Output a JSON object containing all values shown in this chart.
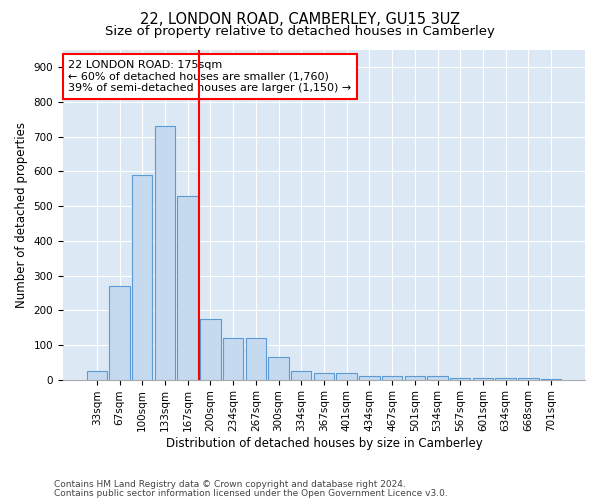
{
  "title": "22, LONDON ROAD, CAMBERLEY, GU15 3UZ",
  "subtitle": "Size of property relative to detached houses in Camberley",
  "xlabel": "Distribution of detached houses by size in Camberley",
  "ylabel": "Number of detached properties",
  "categories": [
    "33sqm",
    "67sqm",
    "100sqm",
    "133sqm",
    "167sqm",
    "200sqm",
    "234sqm",
    "267sqm",
    "300sqm",
    "334sqm",
    "367sqm",
    "401sqm",
    "434sqm",
    "467sqm",
    "501sqm",
    "534sqm",
    "567sqm",
    "601sqm",
    "634sqm",
    "668sqm",
    "701sqm"
  ],
  "values": [
    25,
    270,
    590,
    730,
    530,
    175,
    120,
    120,
    65,
    25,
    20,
    20,
    10,
    10,
    10,
    10,
    5,
    5,
    5,
    5,
    3
  ],
  "bar_color": "#c5d9ef",
  "bar_edge_color": "#5b9bd5",
  "vline_x": 4.5,
  "vline_color": "red",
  "annotation_text": "22 LONDON ROAD: 175sqm\n← 60% of detached houses are smaller (1,760)\n39% of semi-detached houses are larger (1,150) →",
  "annotation_box_color": "white",
  "annotation_edge_color": "red",
  "ylim": [
    0,
    950
  ],
  "yticks": [
    0,
    100,
    200,
    300,
    400,
    500,
    600,
    700,
    800,
    900
  ],
  "footer1": "Contains HM Land Registry data © Crown copyright and database right 2024.",
  "footer2": "Contains public sector information licensed under the Open Government Licence v3.0.",
  "plot_background": "#dce9f5",
  "title_fontsize": 10.5,
  "subtitle_fontsize": 9.5,
  "tick_fontsize": 7.5,
  "label_fontsize": 8.5,
  "annotation_fontsize": 8,
  "footer_fontsize": 6.5
}
